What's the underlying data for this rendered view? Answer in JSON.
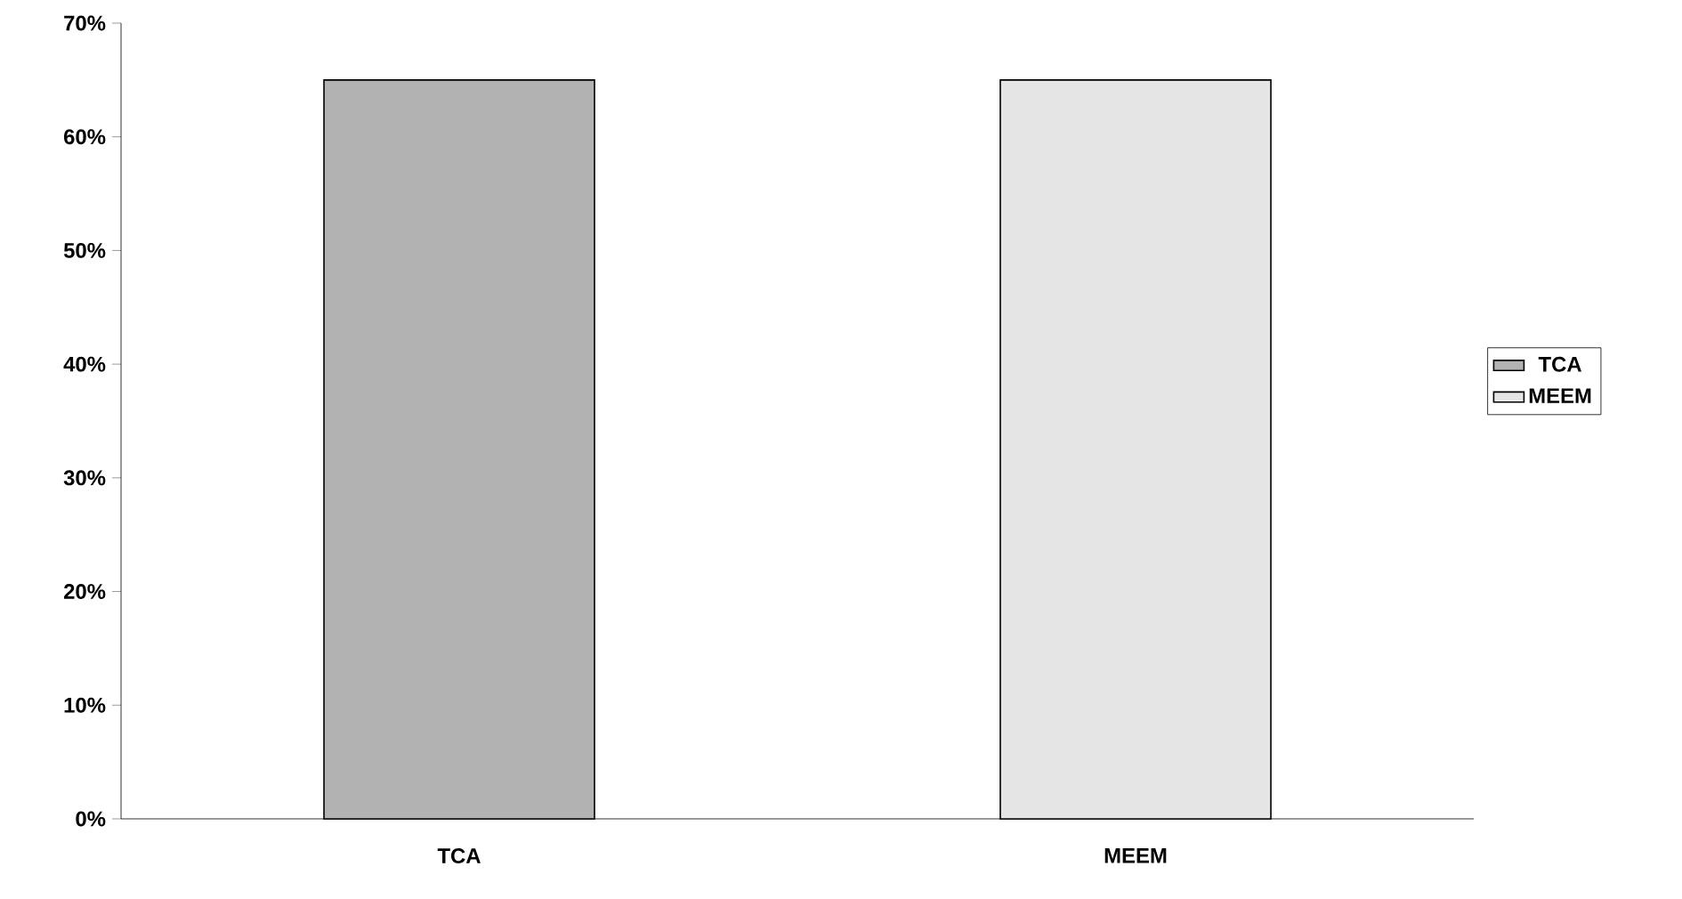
{
  "chart_data": {
    "type": "bar",
    "categories": [
      "TCA",
      "MEEM"
    ],
    "series": [
      {
        "name": "TCA",
        "color": "#b2b2b2",
        "values": [
          65,
          null
        ]
      },
      {
        "name": "MEEM",
        "color": "#e5e5e5",
        "values": [
          null,
          65
        ]
      }
    ],
    "ylim": [
      0,
      70
    ],
    "yticks": [
      {
        "value": 0,
        "label": "0%"
      },
      {
        "value": 10,
        "label": "10%"
      },
      {
        "value": 20,
        "label": "20%"
      },
      {
        "value": 30,
        "label": "30%"
      },
      {
        "value": 40,
        "label": "40%"
      },
      {
        "value": 50,
        "label": "50%"
      },
      {
        "value": 60,
        "label": "60%"
      },
      {
        "value": 70,
        "label": "70%"
      }
    ],
    "legend": "right"
  }
}
